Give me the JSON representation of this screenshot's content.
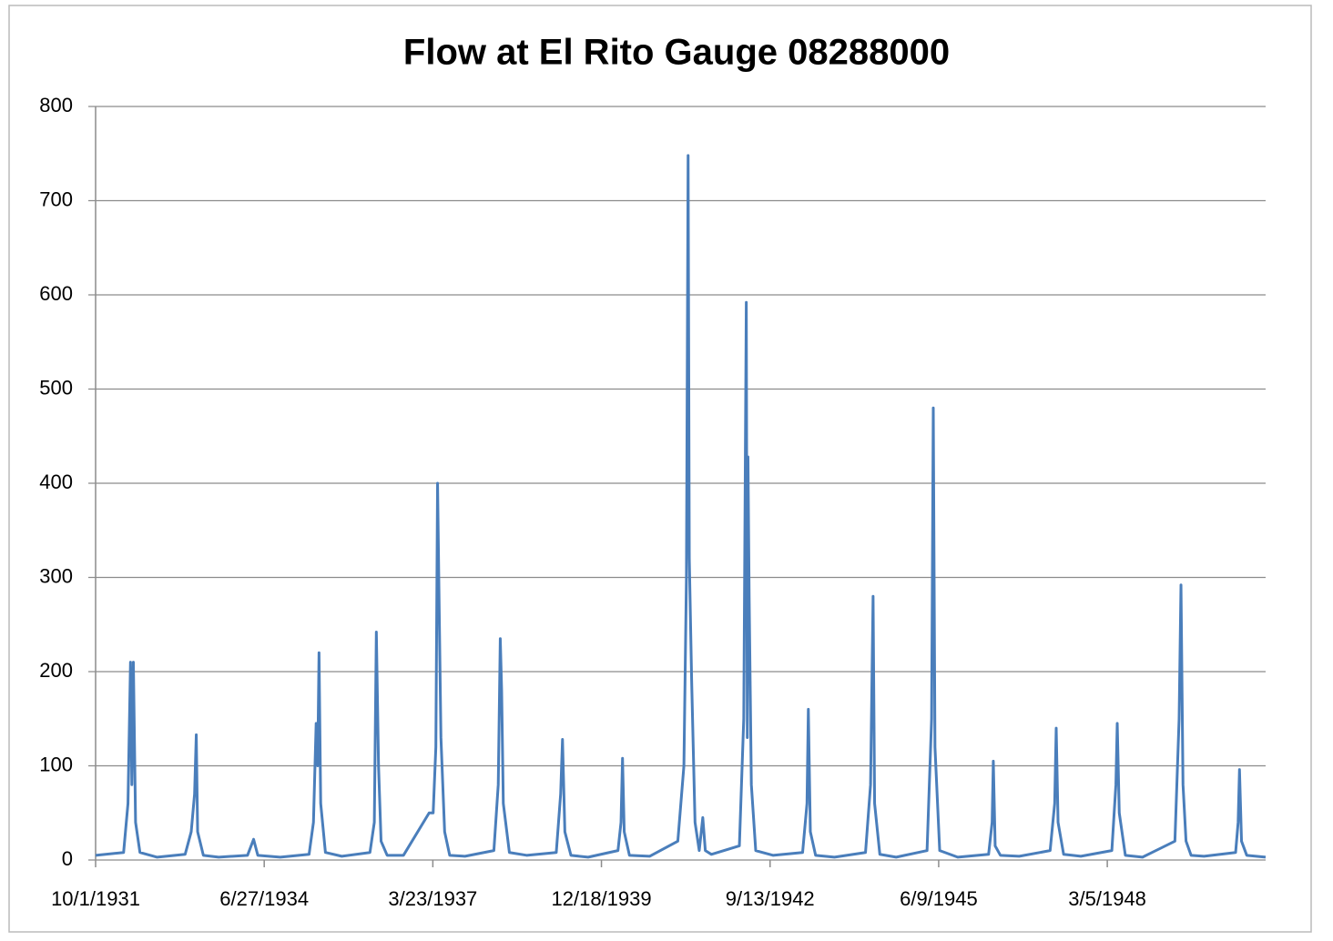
{
  "chart_data": {
    "type": "line",
    "title": "Flow at El Rito Gauge 08288000",
    "color": "#4a7ebb",
    "grid": true,
    "ylim": [
      0,
      800
    ],
    "yticks": [
      0,
      100,
      200,
      300,
      400,
      500,
      600,
      700,
      800
    ],
    "xlim": [
      "10/1/1931",
      "9/30/1950"
    ],
    "xticks": [
      "10/1/1931",
      "6/27/1934",
      "3/23/1937",
      "12/18/1939",
      "9/13/1942",
      "6/9/1945",
      "3/5/1948"
    ],
    "x": [
      "10/1/1931",
      "3/15/1932",
      "4/10/1932",
      "4/25/1932",
      "5/3/1932",
      "5/12/1932",
      "5/25/1932",
      "6/20/1932",
      "9/30/1932",
      "3/15/1933",
      "4/20/1933",
      "5/10/1933",
      "5/20/1933",
      "5/28/1933",
      "7/1/1933",
      "9/30/1933",
      "3/20/1934",
      "4/25/1934",
      "5/20/1934",
      "9/30/1934",
      "3/20/1935",
      "4/15/1935",
      "5/1/1935",
      "5/10/1935",
      "5/18/1935",
      "5/28/1935",
      "6/25/1935",
      "9/30/1935",
      "3/15/1936",
      "4/10/1936",
      "4/22/1936",
      "5/5/1936",
      "5/20/1936",
      "6/25/1936",
      "9/30/1936",
      "3/1/1937",
      "3/25/1937",
      "4/10/1937",
      "4/20/1937",
      "4/28/1937",
      "5/10/1937",
      "6/1/1937",
      "7/1/1937",
      "9/30/1937",
      "3/20/1938",
      "4/15/1938",
      "4/27/1938",
      "5/5/1938",
      "5/15/1938",
      "6/20/1938",
      "9/30/1938",
      "3/25/1939",
      "4/20/1939",
      "5/1/1939",
      "5/15/1939",
      "6/20/1939",
      "9/30/1939",
      "3/25/1940",
      "4/12/1940",
      "4/21/1940",
      "5/1/1940",
      "6/1/1940",
      "9/30/1940",
      "3/15/1941",
      "4/20/1941",
      "5/5/1941",
      "5/15/1941",
      "5/22/1941",
      "6/5/1941",
      "6/25/1941",
      "7/20/1941",
      "8/10/1941",
      "8/25/1941",
      "9/30/1941",
      "3/15/1942",
      "4/10/1942",
      "4/25/1942",
      "5/1/1942",
      "5/5/1942",
      "5/12/1942",
      "5/25/1942",
      "6/20/1942",
      "9/30/1942",
      "3/25/1943",
      "4/20/1943",
      "4/28/1943",
      "5/10/1943",
      "6/10/1943",
      "9/30/1943",
      "4/1/1944",
      "5/1/1944",
      "5/16/1944",
      "5/25/1944",
      "6/25/1944",
      "9/30/1944",
      "4/1/1945",
      "4/28/1945",
      "5/8/1945",
      "5/18/1945",
      "6/15/1945",
      "9/30/1945",
      "4/1/1946",
      "4/22/1946",
      "4/29/1946",
      "5/10/1946",
      "6/10/1946",
      "9/30/1946",
      "4/1/1947",
      "4/28/1947",
      "5/7/1947",
      "5/18/1947",
      "6/20/1947",
      "9/30/1947",
      "4/1/1948",
      "4/25/1948",
      "5/3/1948",
      "5/15/1948",
      "6/20/1948",
      "9/30/1948",
      "4/10/1949",
      "5/5/1949",
      "5/16/1949",
      "5/28/1949",
      "6/15/1949",
      "7/15/1949",
      "9/30/1949",
      "4/5/1950",
      "4/20/1950",
      "4/28/1950",
      "5/10/1950",
      "6/10/1950",
      "9/30/1950"
    ],
    "values": [
      5,
      8,
      60,
      210,
      80,
      210,
      40,
      8,
      3,
      6,
      30,
      70,
      133,
      30,
      5,
      3,
      5,
      22,
      5,
      3,
      6,
      40,
      145,
      100,
      220,
      60,
      8,
      4,
      8,
      40,
      242,
      100,
      20,
      5,
      5,
      50,
      50,
      120,
      400,
      290,
      130,
      30,
      5,
      4,
      10,
      80,
      235,
      180,
      60,
      8,
      5,
      8,
      70,
      128,
      30,
      5,
      3,
      10,
      40,
      108,
      30,
      5,
      4,
      20,
      100,
      300,
      748,
      320,
      190,
      40,
      10,
      45,
      10,
      6,
      15,
      150,
      592,
      130,
      428,
      280,
      80,
      10,
      5,
      8,
      60,
      160,
      30,
      5,
      3,
      8,
      80,
      280,
      60,
      6,
      3,
      10,
      150,
      480,
      120,
      10,
      3,
      6,
      40,
      105,
      15,
      5,
      4,
      10,
      60,
      140,
      40,
      6,
      4,
      10,
      80,
      145,
      50,
      5,
      3,
      20,
      150,
      292,
      80,
      20,
      5,
      4,
      8,
      40,
      96,
      20,
      5,
      3
    ]
  }
}
